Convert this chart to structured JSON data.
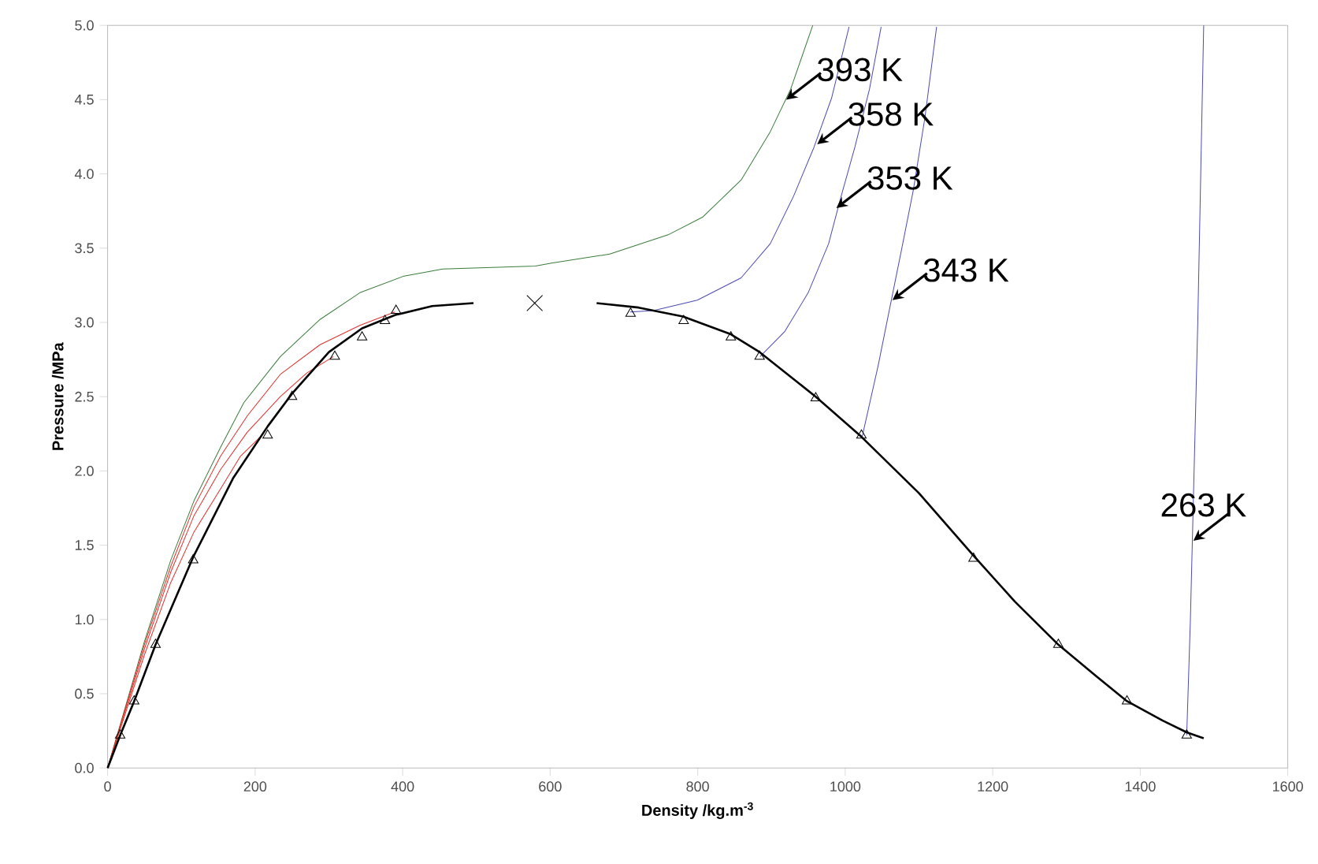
{
  "chart_data": {
    "type": "line",
    "xlabel": "Density /kg.m$^{-3}$",
    "ylabel": "Pressure /MPa",
    "xlim": [
      0,
      1600
    ],
    "xticks": [
      0,
      200,
      400,
      600,
      800,
      1000,
      1200,
      1400,
      1600
    ],
    "ylim": [
      0,
      5
    ],
    "yticks": [
      {
        "value": 0,
        "label": "0.0"
      },
      {
        "value": 0.5,
        "label": "0.5"
      },
      {
        "value": 1,
        "label": "1.0"
      },
      {
        "value": 1.5,
        "label": "1.5"
      },
      {
        "value": 2,
        "label": "2.0"
      },
      {
        "value": 2.5,
        "label": "2.5"
      },
      {
        "value": 3,
        "label": "3.0"
      },
      {
        "value": 3.5,
        "label": "3.5"
      },
      {
        "value": 4,
        "label": "4.0"
      },
      {
        "value": 4.5,
        "label": "4.5"
      },
      {
        "value": 5,
        "label": "5.0"
      }
    ],
    "grid": false,
    "series": [
      {
        "color": "#3a7d3a",
        "marker": "none",
        "x": [
          0,
          49.8,
          85.7,
          117.2,
          153.2,
          184.7,
          234.1,
          288,
          342,
          400.5,
          454.4,
          580,
          601.7,
          680.8,
          760,
          807,
          859,
          898,
          926,
          956
        ],
        "values": [
          0,
          0.85,
          1.4,
          1.8,
          2.16,
          2.46,
          2.77,
          3.02,
          3.2,
          3.31,
          3.36,
          3.38,
          3.4,
          3.46,
          3.59,
          3.71,
          3.96,
          4.28,
          4.57,
          5.0
        ]
      },
      {
        "color": "#e0302c",
        "marker": "none",
        "x": [
          0,
          49.8,
          85.7,
          117.2,
          153.2,
          189.2,
          234.1,
          288,
          342,
          389.2
        ],
        "values": [
          0,
          0.83,
          1.36,
          1.76,
          2.1,
          2.37,
          2.65,
          2.85,
          2.98,
          3.07
        ]
      },
      {
        "color": "#e0302c",
        "marker": "none",
        "x": [
          0,
          49.8,
          85.7,
          117.2,
          153.2,
          189.2,
          234.1,
          270.1,
          306.1
        ],
        "values": [
          0,
          0.8,
          1.32,
          1.7,
          2.01,
          2.26,
          2.5,
          2.66,
          2.77
        ]
      },
      {
        "color": "#e0302c",
        "marker": "none",
        "x": [
          0,
          49.8,
          85.7,
          117.2,
          153.2,
          180.2,
          207.1
        ],
        "values": [
          0,
          0.76,
          1.25,
          1.59,
          1.88,
          2.1,
          2.23
        ]
      },
      {
        "color": "#4b4bb4",
        "marker": "none",
        "x": [
          708.5,
          740,
          799.5,
          858.8,
          898.4,
          930,
          957.7,
          981.5,
          1005.2
        ],
        "values": [
          3.07,
          3.08,
          3.15,
          3.3,
          3.53,
          3.85,
          4.18,
          4.51,
          4.99
        ]
      },
      {
        "color": "#4b4bb4",
        "marker": "none",
        "x": [
          884.5,
          918.2,
          949.8,
          977.5,
          993.4,
          1013.1,
          1032.9,
          1048.7
        ],
        "values": [
          2.77,
          2.94,
          3.2,
          3.53,
          3.83,
          4.18,
          4.57,
          4.99
        ]
      },
      {
        "color": "#4b4bb4",
        "marker": "none",
        "x": [
          1023,
          1044.7,
          1060.5,
          1076.4,
          1092.3,
          1108.1,
          1123.9
        ],
        "values": [
          2.23,
          2.71,
          3.1,
          3.49,
          3.89,
          4.38,
          4.99
        ]
      },
      {
        "color": "#4b4bb4",
        "marker": "none",
        "x": [
          1463,
          1468,
          1473,
          1478,
          1482,
          1486
        ],
        "values": [
          0.22,
          1.0,
          2.0,
          3.0,
          4.0,
          5.0
        ]
      },
      {
        "color": "#000000",
        "marker": "none",
        "x": [
          0,
          17,
          36,
          65,
          116,
          170,
          217,
          250,
          300,
          345,
          390,
          440,
          496
        ],
        "values": [
          0,
          0.22,
          0.45,
          0.83,
          1.42,
          1.95,
          2.3,
          2.52,
          2.8,
          2.96,
          3.05,
          3.11,
          3.13
        ]
      },
      {
        "color": "#000000",
        "marker": "none",
        "x": [
          663,
          720,
          780,
          845,
          884,
          960,
          1022,
          1100,
          1174,
          1230,
          1289,
          1340,
          1382,
          1430,
          1463,
          1486
        ],
        "values": [
          3.13,
          3.1,
          3.04,
          2.92,
          2.8,
          2.5,
          2.23,
          1.85,
          1.43,
          1.12,
          0.83,
          0.62,
          0.45,
          0.32,
          0.24,
          0.2
        ]
      },
      {
        "type": "scatter",
        "color": "#000000",
        "marker": "triangle",
        "x": [
          17,
          36,
          65,
          116,
          217,
          250,
          308,
          345,
          376,
          391,
          709,
          781,
          845,
          884,
          960,
          1022,
          1174,
          1289,
          1382,
          1463
        ],
        "values": [
          0.22,
          0.45,
          0.83,
          1.4,
          2.24,
          2.5,
          2.77,
          2.9,
          3.01,
          3.08,
          3.06,
          3.01,
          2.9,
          2.77,
          2.49,
          2.24,
          1.41,
          0.83,
          0.45,
          0.22
        ]
      },
      {
        "type": "scatter",
        "color": "#000000",
        "marker": "cross",
        "x": [
          579
        ],
        "values": [
          3.13
        ]
      }
    ],
    "annotations": [
      {
        "text": "393 K",
        "x": 920,
        "y": 4.5
      },
      {
        "text": "358 K",
        "x": 962,
        "y": 4.2
      },
      {
        "text": "353 K",
        "x": 988,
        "y": 3.77
      },
      {
        "text": "343 K",
        "x": 1064,
        "y": 3.15
      },
      {
        "text": "263 K",
        "x": 1472,
        "y": 1.53
      }
    ]
  }
}
